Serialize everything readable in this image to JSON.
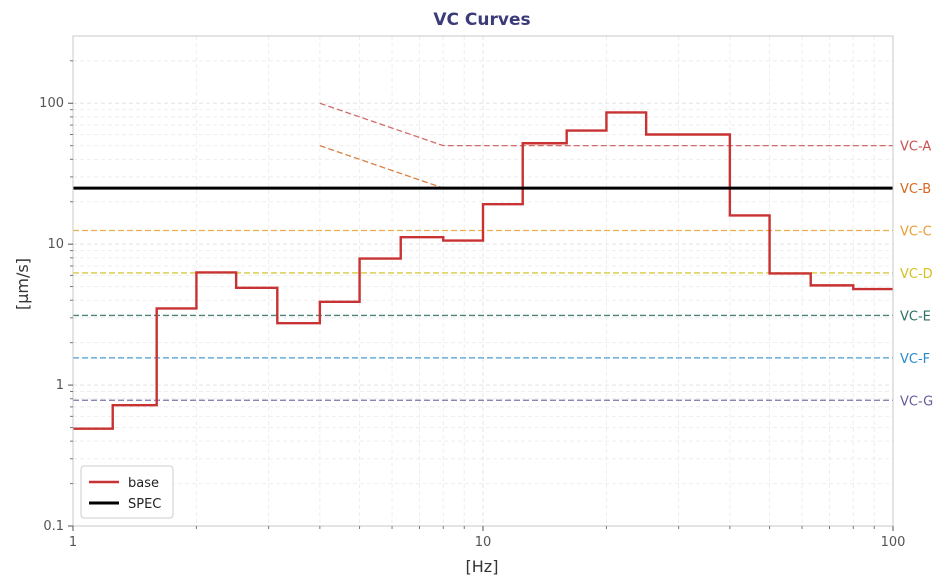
{
  "chart_data": {
    "type": "line",
    "title": "VC Curves",
    "xlabel": "[Hz]",
    "ylabel": "[µm/s]",
    "xscale": "log",
    "yscale": "log",
    "xlim": [
      1,
      100
    ],
    "ylim": [
      0.1,
      300
    ],
    "grid": true,
    "legend_placement": "bottom-left",
    "x_ticks": [
      {
        "value": 1,
        "label": "1"
      },
      {
        "value": 10,
        "label": "10"
      },
      {
        "value": 100,
        "label": "100"
      }
    ],
    "y_ticks": [
      {
        "value": 0.1,
        "label": "0.1"
      },
      {
        "value": 1,
        "label": "1"
      },
      {
        "value": 10,
        "label": "10"
      },
      {
        "value": 100,
        "label": "100"
      }
    ],
    "vc_curves": [
      {
        "label": "VC-A",
        "color": "#c8524f",
        "points": [
          [
            4,
            100
          ],
          [
            8,
            50
          ],
          [
            100,
            50
          ]
        ]
      },
      {
        "label": "VC-B",
        "color": "#d2691e",
        "points": [
          [
            4,
            50
          ],
          [
            8,
            25
          ],
          [
            100,
            25
          ]
        ]
      },
      {
        "label": "VC-C",
        "color": "#e8a030",
        "points": [
          [
            1,
            12.5
          ],
          [
            100,
            12.5
          ]
        ]
      },
      {
        "label": "VC-D",
        "color": "#d4c020",
        "points": [
          [
            1,
            6.25
          ],
          [
            100,
            6.25
          ]
        ]
      },
      {
        "label": "VC-E",
        "color": "#2e6e62",
        "points": [
          [
            1,
            3.12
          ],
          [
            100,
            3.12
          ]
        ]
      },
      {
        "label": "VC-F",
        "color": "#2a8ac9",
        "points": [
          [
            1,
            1.56
          ],
          [
            100,
            1.56
          ]
        ]
      },
      {
        "label": "VC-G",
        "color": "#6a5a9a",
        "points": [
          [
            1,
            0.78
          ],
          [
            100,
            0.78
          ]
        ]
      }
    ],
    "series": [
      {
        "name": "base",
        "color": "#c83232",
        "style": "step",
        "band_edges": [
          1,
          1.25,
          1.6,
          2,
          2.5,
          3.15,
          4,
          5,
          6.3,
          8,
          10,
          12.5,
          16,
          20,
          25,
          31.5,
          40,
          50,
          63,
          80,
          100
        ],
        "values": [
          0.49,
          0.72,
          3.5,
          6.3,
          4.9,
          2.75,
          3.9,
          7.9,
          11.2,
          10.6,
          19.2,
          52,
          64,
          86,
          60,
          60,
          16,
          6.2,
          5.1,
          4.8
        ]
      },
      {
        "name": "SPEC",
        "color": "#000000",
        "style": "line",
        "points": [
          [
            1,
            25
          ],
          [
            100,
            25
          ]
        ]
      }
    ]
  }
}
